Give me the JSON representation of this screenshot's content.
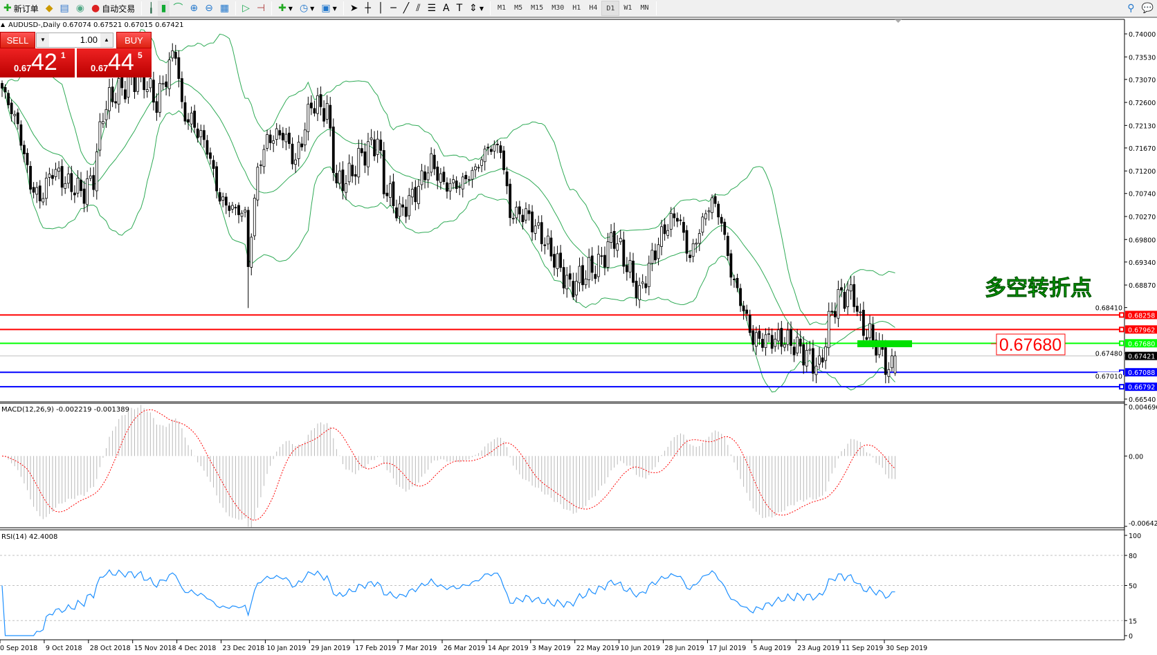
{
  "toolbar": {
    "new_order": "新订单",
    "auto_trading": "自动交易",
    "timeframes": [
      "M1",
      "M5",
      "M15",
      "M30",
      "H1",
      "H4",
      "D1",
      "W1",
      "MN"
    ],
    "active_timeframe": "D1"
  },
  "chart_header": {
    "symbol_info": "AUDUSD-,Daily  0.67074 0.67521 0.67015 0.67421"
  },
  "trade_panel": {
    "sell_label": "SELL",
    "buy_label": "BUY",
    "lot": "1.00",
    "sell_price": {
      "prefix": "0.67",
      "big": "42",
      "sup": "1"
    },
    "buy_price": {
      "prefix": "0.67",
      "big": "44",
      "sup": "5"
    }
  },
  "annotation": {
    "title": "多空转折点",
    "title_color": "#00e000",
    "price_box": "0.67680",
    "price_box_color": "#ff0000"
  },
  "chart_data": {
    "type": "candlestick",
    "symbol": "AUDUSD-",
    "period": "Daily",
    "last_bar": {
      "open": 0.67074,
      "high": 0.67521,
      "low": 0.67015,
      "close": 0.67421
    },
    "approx_close_path": [
      [
        0,
        0.7289
      ],
      [
        5,
        0.7213
      ],
      [
        9,
        0.7092
      ],
      [
        12,
        0.7062
      ],
      [
        16,
        0.7123
      ],
      [
        21,
        0.7092
      ],
      [
        26,
        0.7077
      ],
      [
        29,
        0.7108
      ],
      [
        32,
        0.7243
      ],
      [
        35,
        0.7273
      ],
      [
        41,
        0.7304
      ],
      [
        44,
        0.7319
      ],
      [
        49,
        0.7258
      ],
      [
        53,
        0.7334
      ],
      [
        55,
        0.7371
      ],
      [
        57,
        0.7243
      ],
      [
        61,
        0.7213
      ],
      [
        65,
        0.7168
      ],
      [
        69,
        0.7062
      ],
      [
        72,
        0.7047
      ],
      [
        77,
        0.7032
      ],
      [
        78,
        0.6927
      ],
      [
        81,
        0.7123
      ],
      [
        84,
        0.7183
      ],
      [
        89,
        0.7198
      ],
      [
        93,
        0.7138
      ],
      [
        98,
        0.7258
      ],
      [
        103,
        0.7243
      ],
      [
        106,
        0.7092
      ],
      [
        110,
        0.7108
      ],
      [
        114,
        0.7153
      ],
      [
        119,
        0.7183
      ],
      [
        121,
        0.7092
      ],
      [
        126,
        0.7032
      ],
      [
        131,
        0.7077
      ],
      [
        136,
        0.7138
      ],
      [
        140,
        0.7092
      ],
      [
        145,
        0.7092
      ],
      [
        150,
        0.7123
      ],
      [
        154,
        0.7168
      ],
      [
        158,
        0.7168
      ],
      [
        161,
        0.7032
      ],
      [
        166,
        0.7032
      ],
      [
        171,
        0.6987
      ],
      [
        175,
        0.6942
      ],
      [
        180,
        0.6882
      ],
      [
        185,
        0.6912
      ],
      [
        189,
        0.6927
      ],
      [
        194,
        0.6987
      ],
      [
        199,
        0.6912
      ],
      [
        202,
        0.6867
      ],
      [
        206,
        0.6942
      ],
      [
        210,
        0.7002
      ],
      [
        214,
        0.7032
      ],
      [
        218,
        0.6942
      ],
      [
        222,
        0.7017
      ],
      [
        225,
        0.7062
      ],
      [
        228,
        0.7017
      ],
      [
        231,
        0.6912
      ],
      [
        235,
        0.6836
      ],
      [
        238,
        0.6776
      ],
      [
        243,
        0.6776
      ],
      [
        248,
        0.6776
      ],
      [
        252,
        0.6761
      ],
      [
        257,
        0.6731
      ],
      [
        259,
        0.6716
      ],
      [
        263,
        0.6836
      ],
      [
        266,
        0.6867
      ],
      [
        270,
        0.6867
      ],
      [
        272,
        0.6806
      ],
      [
        276,
        0.6776
      ],
      [
        279,
        0.6746
      ],
      [
        281,
        0.6708
      ],
      [
        283,
        0.6742
      ]
    ],
    "price_axis": {
      "min": 0.6654,
      "max": 0.74,
      "ticks": [
        "0.74000",
        "0.73530",
        "0.73070",
        "0.72600",
        "0.72130",
        "0.71670",
        "0.71200",
        "0.70740",
        "0.70270",
        "0.69800",
        "0.69340",
        "0.68870",
        "0.68410",
        "0.67480",
        "0.67010",
        "0.66540"
      ]
    },
    "horizontal_lines": [
      {
        "price": "0.68258",
        "color": "#ff0000"
      },
      {
        "price": "0.67962",
        "color": "#ff0000"
      },
      {
        "price": "0.67680",
        "color": "#00ff00"
      },
      {
        "price": "0.67088",
        "color": "#0000ff"
      },
      {
        "price": "0.66792",
        "color": "#0000ff"
      }
    ],
    "current_price": {
      "price": "0.67421",
      "color": "#000000"
    },
    "bollinger_color": "#2eaa55",
    "date_labels": [
      "20 Sep 2018",
      "9 Oct 2018",
      "28 Oct 2018",
      "15 Nov 2018",
      "4 Dec 2018",
      "23 Dec 2018",
      "10 Jan 2019",
      "29 Jan 2019",
      "17 Feb 2019",
      "7 Mar 2019",
      "26 Mar 2019",
      "14 Apr 2019",
      "3 May 2019",
      "22 May 2019",
      "10 Jun 2019",
      "28 Jun 2019",
      "17 Jul 2019",
      "5 Aug 2019",
      "23 Aug 2019",
      "11 Sep 2019",
      "30 Sep 2019"
    ],
    "macd": {
      "label": "MACD(12,26,9) -0.002219 -0.001389",
      "max": 0.004696,
      "min": -0.006427,
      "ticks": [
        "0.004696",
        "0.00",
        "-0.006427"
      ],
      "hist_color": "#b8b8b8",
      "signal_color": "#ff0000"
    },
    "rsi": {
      "label": "RSI(14) 42.4008",
      "levels": [
        80,
        50,
        15
      ],
      "ticks": [
        "100",
        "80",
        "50",
        "15",
        "0"
      ],
      "color": "#1e90ff"
    }
  }
}
